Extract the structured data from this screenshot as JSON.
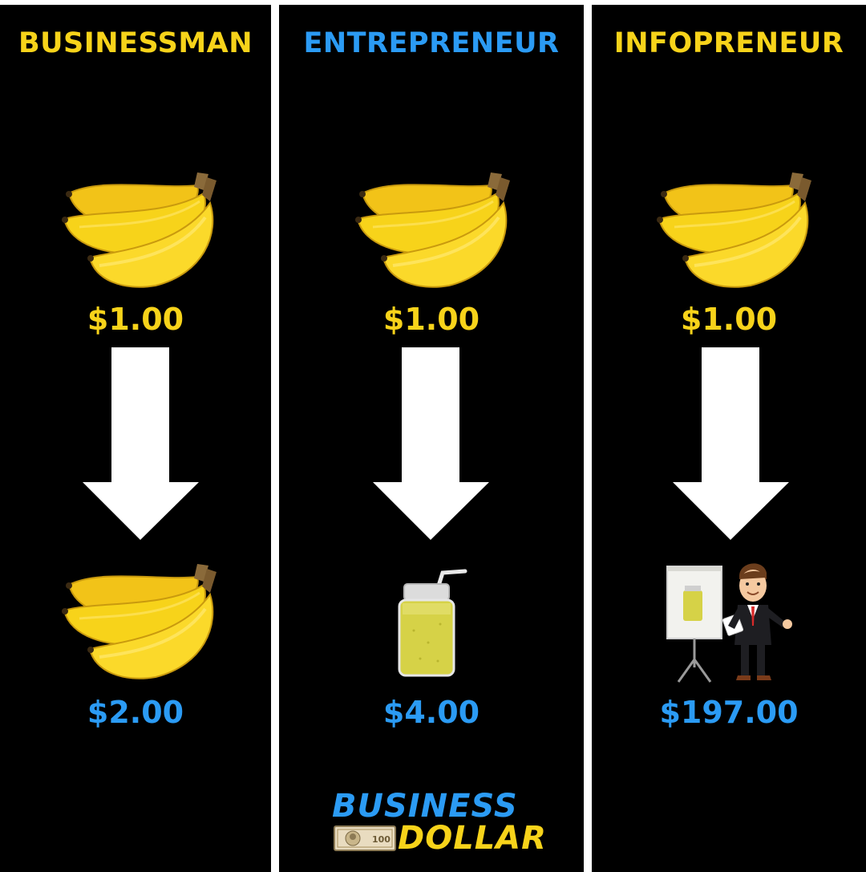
{
  "colors": {
    "yellow": "#f7d31a",
    "blue": "#2b9bf4",
    "background": "#000000",
    "divider": "#ffffff",
    "arrow": "#ffffff"
  },
  "columns": [
    {
      "title": "BUSINESSMAN",
      "title_color": "#f7d31a",
      "top_icon": "banana-bunch-icon",
      "price_start": "$1.00",
      "arrow_icon": "down-arrow-icon",
      "bottom_icon": "banana-bunch-icon",
      "price_end": "$2.00"
    },
    {
      "title": "ENTREPRENEUR",
      "title_color": "#2b9bf4",
      "top_icon": "banana-bunch-icon",
      "price_start": "$1.00",
      "arrow_icon": "down-arrow-icon",
      "bottom_icon": "smoothie-jar-icon",
      "price_end": "$4.00"
    },
    {
      "title": "INFOPRENEUR",
      "title_color": "#f7d31a",
      "top_icon": "banana-bunch-icon",
      "price_start": "$1.00",
      "arrow_icon": "down-arrow-icon",
      "bottom_icon": "presenter-with-flipchart-icon",
      "price_end": "$197.00"
    }
  ],
  "logo": {
    "line1": "BUSINESS",
    "line2": "DOLLAR",
    "icon": "dollar-bill-icon"
  }
}
